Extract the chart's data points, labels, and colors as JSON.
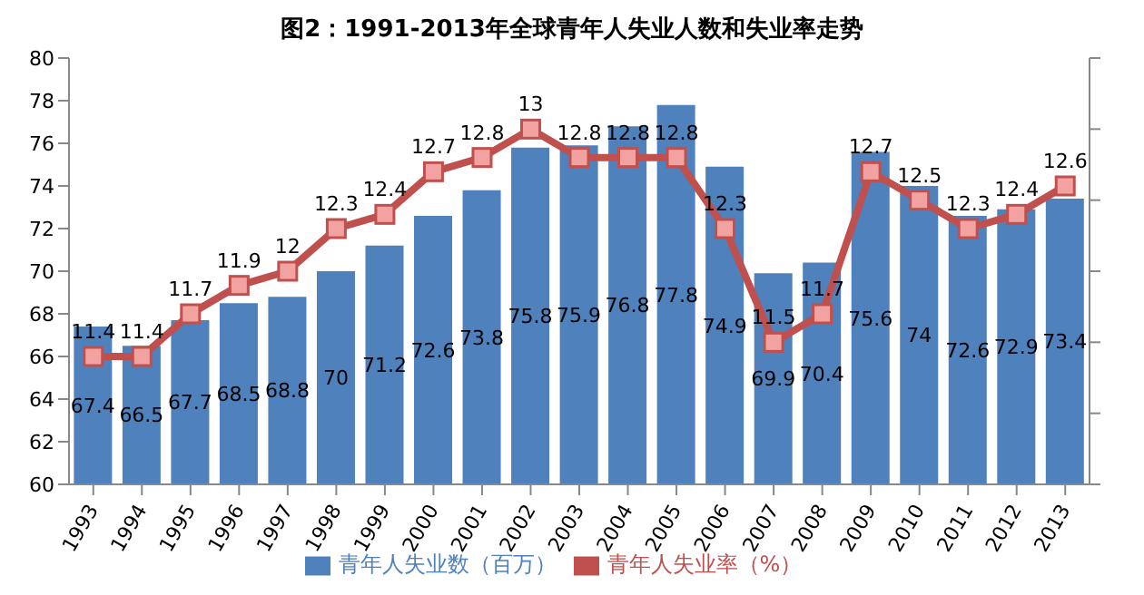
{
  "chart_data": {
    "type": "bar",
    "title": "图2：1991-2013年全球青年人失业人数和失业率走势",
    "categories": [
      "1993",
      "1994",
      "1995",
      "1996",
      "1997",
      "1998",
      "1999",
      "2000",
      "2001",
      "2002",
      "2003",
      "2004",
      "2005",
      "2006",
      "2007",
      "2008",
      "2009",
      "2010",
      "2011",
      "2012",
      "2013"
    ],
    "series": [
      {
        "name": "青年人失业数（百万）",
        "color": "#4f81bd",
        "values": [
          67.4,
          66.5,
          67.7,
          68.5,
          68.8,
          70,
          71.2,
          72.6,
          73.8,
          75.8,
          75.9,
          76.8,
          77.8,
          74.9,
          69.9,
          70.4,
          75.6,
          74,
          72.6,
          72.9,
          73.4
        ]
      },
      {
        "name": "青年人失业率（%）",
        "type": "line",
        "axis": "y2",
        "color": "#c0504d",
        "marker": "square",
        "values": [
          11.4,
          11.4,
          11.7,
          11.9,
          12,
          12.3,
          12.4,
          12.7,
          12.8,
          13,
          12.8,
          12.8,
          12.8,
          12.3,
          11.5,
          11.7,
          12.7,
          12.5,
          12.3,
          12.4,
          12.6
        ]
      }
    ],
    "ylim": [
      60,
      80
    ],
    "yticks": [
      60,
      62,
      64,
      66,
      68,
      70,
      72,
      74,
      76,
      78,
      80
    ],
    "y2lim": [
      10.5,
      13.5
    ],
    "y2ticks": [
      {
        "value": 10.5,
        "label": null
      },
      {
        "value": 11,
        "label": null
      },
      {
        "value": 11.5,
        "label": null
      },
      {
        "value": 12,
        "label": null
      },
      {
        "value": 12.5,
        "label": null
      },
      {
        "value": 13,
        "label": null
      },
      {
        "value": 13.5,
        "label": null
      }
    ],
    "data_labels": true,
    "grid": false,
    "legend": "bottom"
  }
}
